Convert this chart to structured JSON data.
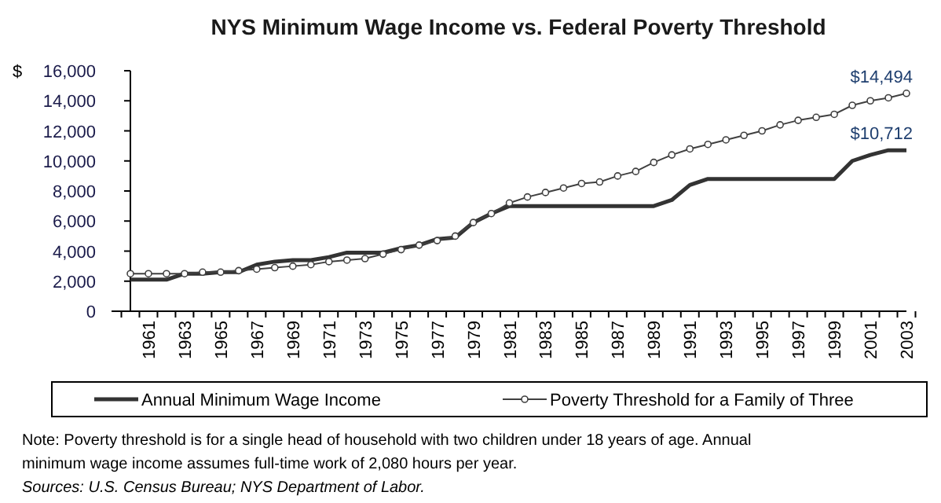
{
  "chart_data": {
    "type": "line",
    "title": "NYS Minimum Wage Income vs. Federal Poverty Threshold",
    "ylabel": "$",
    "categories": [
      null,
      "1961",
      null,
      "1963",
      null,
      "1965",
      null,
      "1967",
      null,
      "1969",
      null,
      "1971",
      null,
      "1973",
      null,
      "1975",
      null,
      "1977",
      null,
      "1979",
      null,
      "1981",
      null,
      "1983",
      null,
      "1985",
      null,
      "1987",
      null,
      "1989",
      null,
      "1991",
      null,
      "1993",
      null,
      "1995",
      null,
      "1997",
      null,
      "1999",
      null,
      "2001",
      null,
      "2003"
    ],
    "series": [
      {
        "name": "Annual Minimum Wage Income",
        "color": "#333333",
        "marker": "none",
        "values": [
          2100,
          2100,
          2100,
          2500,
          2500,
          2600,
          2600,
          3100,
          3300,
          3400,
          3400,
          3600,
          3900,
          3900,
          3900,
          4200,
          4400,
          4800,
          4900,
          5900,
          6500,
          7000,
          7000,
          7000,
          7000,
          7000,
          7000,
          7000,
          7000,
          7000,
          7400,
          8400,
          8800,
          8800,
          8800,
          8800,
          8800,
          8800,
          8800,
          8800,
          10000,
          10400,
          10712,
          10712
        ],
        "value_labels": [
          null,
          null,
          null,
          null,
          null,
          null,
          null,
          null,
          null,
          null,
          null,
          null,
          null,
          null,
          null,
          null,
          null,
          null,
          null,
          null,
          null,
          null,
          null,
          null,
          null,
          null,
          null,
          null,
          null,
          null,
          null,
          null,
          null,
          null,
          null,
          null,
          null,
          null,
          null,
          null,
          null,
          null,
          null,
          "$10,712"
        ]
      },
      {
        "name": "Poverty Threshold for a Family of Three",
        "color": "#404040",
        "marker": "circle",
        "values": [
          2500,
          2500,
          2500,
          2500,
          2600,
          2600,
          2700,
          2800,
          2900,
          3000,
          3100,
          3300,
          3400,
          3500,
          3800,
          4100,
          4400,
          4700,
          5000,
          5900,
          6500,
          7200,
          7600,
          7900,
          8200,
          8500,
          8600,
          9000,
          9300,
          9900,
          10400,
          10800,
          11100,
          11400,
          11700,
          12000,
          12400,
          12700,
          12900,
          13100,
          13700,
          14000,
          14200,
          14494
        ],
        "value_labels": [
          null,
          null,
          null,
          null,
          null,
          null,
          null,
          null,
          null,
          null,
          null,
          null,
          null,
          null,
          null,
          null,
          null,
          null,
          null,
          null,
          null,
          null,
          null,
          null,
          null,
          null,
          null,
          null,
          null,
          null,
          null,
          null,
          null,
          null,
          null,
          null,
          null,
          null,
          null,
          null,
          null,
          null,
          null,
          "$14,494"
        ]
      }
    ],
    "ylim": [
      0,
      16000
    ],
    "yticks": [
      {
        "value": 0,
        "label": "0"
      },
      {
        "value": 2000,
        "label": "2,000"
      },
      {
        "value": 4000,
        "label": "4,000"
      },
      {
        "value": 6000,
        "label": "6,000"
      },
      {
        "value": 8000,
        "label": "8,000"
      },
      {
        "value": 10000,
        "label": "10,000"
      },
      {
        "value": 12000,
        "label": "12,000"
      },
      {
        "value": 14000,
        "label": "14,000"
      },
      {
        "value": 16000,
        "label": "16,000"
      }
    ],
    "grid": false,
    "legend": "bottom",
    "annotations": [
      "Note:   Poverty threshold is for a single head of household with two children under 18 years of age. Annual minimum wage income assumes full-time work of 2,080 hours per year.",
      "Sources:  U.S. Census Bureau; NYS Department of Labor."
    ]
  }
}
